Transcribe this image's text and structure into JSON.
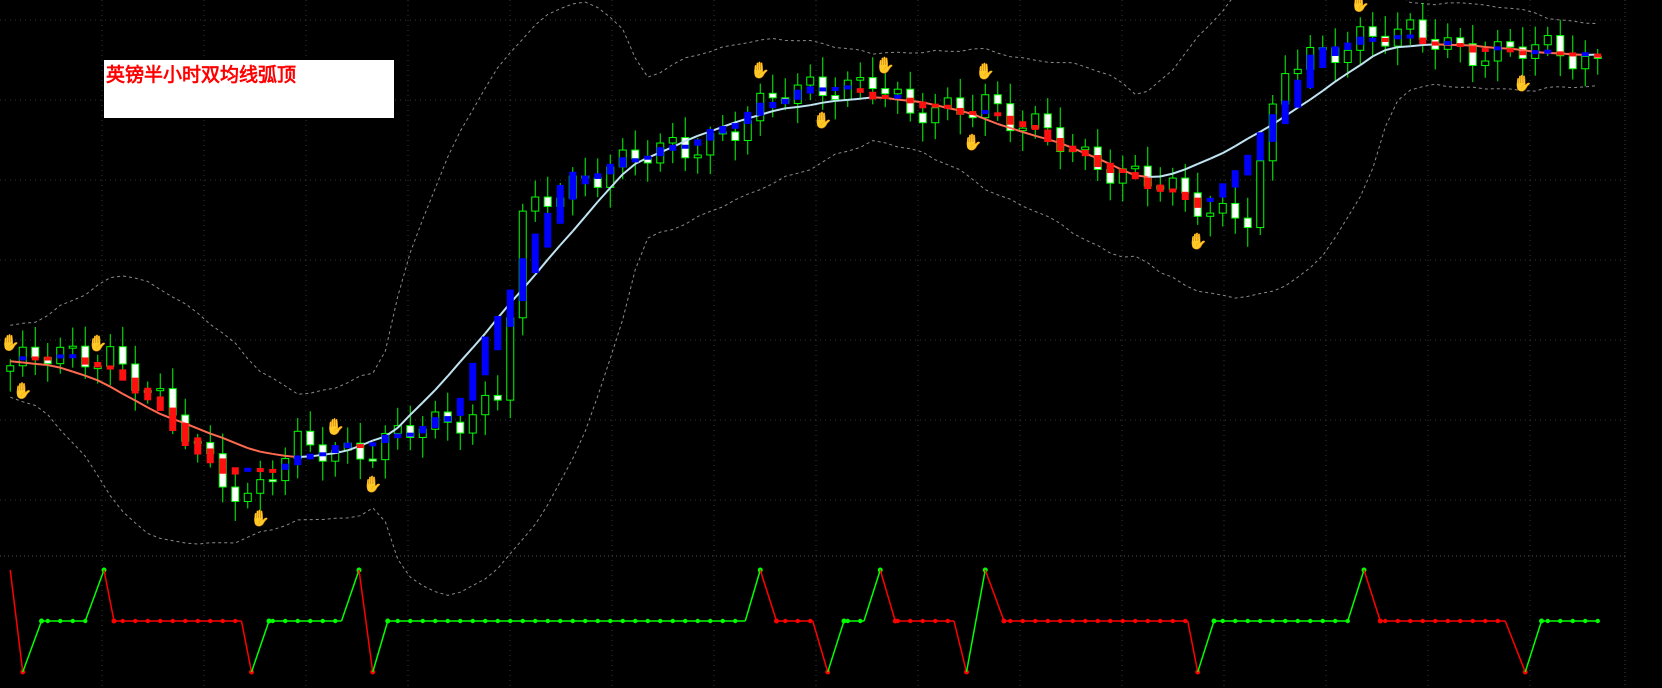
{
  "title_box": {
    "text": "英镑半小时双均线弧顶"
  },
  "colors": {
    "background": "#000000",
    "grid": "#2e3a33",
    "candle": "#00ff00",
    "bear_body": "#ffffff",
    "slow_ma_up": "#bfe4f2",
    "slow_ma_down": "#ff6a50",
    "fast_ma_up": "#0000ff",
    "fast_ma_down": "#ff1010",
    "bands": "#8a8a8a",
    "top_marker": "#ff2020",
    "bottom_marker": "#2a9cff",
    "osc_up": "#00ff00",
    "osc_down": "#ff0000"
  },
  "chart_data": [
    {
      "type": "candlestick",
      "description_level": "relative price level 0-100 (price axis labels not legible)",
      "bars": 128,
      "close_path": [
        [
          0,
          33.5
        ],
        [
          8,
          36.4
        ],
        [
          12,
          25.8
        ],
        [
          19,
          9.4
        ],
        [
          23,
          18.1
        ],
        [
          29,
          19
        ],
        [
          35,
          22.9
        ],
        [
          39,
          28.7
        ],
        [
          41,
          59.5
        ],
        [
          48,
          71.1
        ],
        [
          54,
          72
        ],
        [
          60,
          80.7
        ],
        [
          69,
          86.5
        ],
        [
          72,
          77.8
        ],
        [
          78,
          82.7
        ],
        [
          80,
          77.8
        ],
        [
          87,
          71.1
        ],
        [
          94,
          63.4
        ],
        [
          99,
          61.4
        ],
        [
          102,
          86.5
        ],
        [
          108,
          94.2
        ],
        [
          117,
          91.3
        ],
        [
          127,
          89.4
        ]
      ],
      "overlays": [
        "slow moving average",
        "fast moving average",
        "bands"
      ],
      "top_markers": [
        0,
        7,
        26,
        60,
        70,
        78,
        108
      ],
      "bottom_markers": [
        1,
        20,
        29,
        65,
        77,
        95,
        121
      ]
    },
    {
      "type": "line",
      "ylim": [
        0,
        1
      ],
      "points": [
        [
          0,
          1,
          "down"
        ],
        [
          1,
          0,
          "down"
        ],
        [
          2.5,
          0.5,
          "up"
        ],
        [
          6,
          0.5,
          "up"
        ],
        [
          7.5,
          1,
          "up"
        ],
        [
          8.3,
          0.5,
          "down"
        ],
        [
          18.5,
          0.5,
          "down"
        ],
        [
          19.3,
          0,
          "down"
        ],
        [
          20.7,
          0.5,
          "up"
        ],
        [
          26.5,
          0.5,
          "up"
        ],
        [
          27.9,
          1,
          "up"
        ],
        [
          29,
          0,
          "down"
        ],
        [
          30.2,
          0.5,
          "up"
        ],
        [
          58.8,
          0.5,
          "up"
        ],
        [
          60,
          1,
          "up"
        ],
        [
          61.3,
          0.5,
          "down"
        ],
        [
          64.2,
          0.5,
          "down"
        ],
        [
          65.4,
          0,
          "down"
        ],
        [
          66.7,
          0.5,
          "up"
        ],
        [
          68.3,
          0.5,
          "up"
        ],
        [
          69.6,
          1,
          "up"
        ],
        [
          70.8,
          0.5,
          "down"
        ],
        [
          75.5,
          0.5,
          "down"
        ],
        [
          76.5,
          0,
          "down"
        ],
        [
          78,
          1,
          "up"
        ],
        [
          79.5,
          0.5,
          "down"
        ],
        [
          94.2,
          0.5,
          "down"
        ],
        [
          95,
          0,
          "down"
        ],
        [
          96.3,
          0.5,
          "up"
        ],
        [
          107,
          0.5,
          "up"
        ],
        [
          108.3,
          1,
          "up"
        ],
        [
          109.6,
          0.5,
          "down"
        ],
        [
          119.6,
          0.5,
          "down"
        ],
        [
          121.2,
          0,
          "down"
        ],
        [
          122.5,
          0.5,
          "up"
        ],
        [
          127,
          0.5,
          "up"
        ]
      ]
    }
  ]
}
